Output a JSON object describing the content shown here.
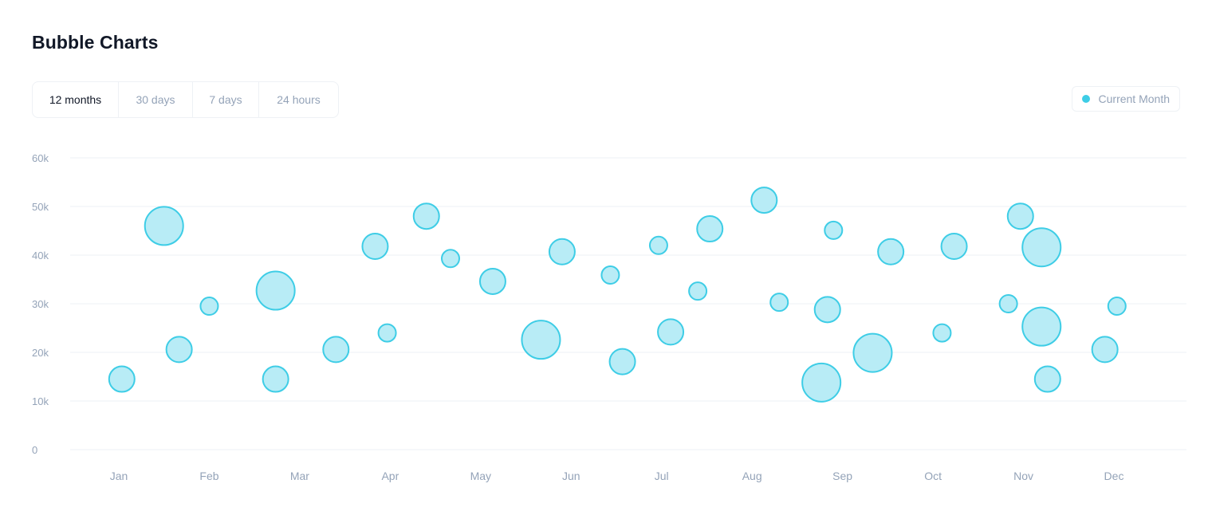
{
  "page": {
    "title": "Bubble Charts"
  },
  "tabs": [
    {
      "label": "12 months",
      "active": true
    },
    {
      "label": "30 days",
      "active": false
    },
    {
      "label": "7 days",
      "active": false
    },
    {
      "label": "24 hours",
      "active": false
    }
  ],
  "legend": {
    "label": "Current Month",
    "color": "#3ecde6"
  },
  "chart_data": {
    "type": "scatter",
    "variant": "bubble",
    "title": "",
    "xlabel": "",
    "ylabel": "",
    "x_ticks": [
      "Jan",
      "Feb",
      "Mar",
      "Apr",
      "May",
      "Jun",
      "Jul",
      "Aug",
      "Sep",
      "Oct",
      "Nov",
      "Dec"
    ],
    "y_ticks": [
      "0",
      "10k",
      "20k",
      "30k",
      "40k",
      "50k",
      "60k"
    ],
    "ylim": [
      0,
      60000
    ],
    "xlim": [
      "Jan",
      "Dec"
    ],
    "grid": true,
    "legend_position": "top-right",
    "bubble_fill": "#b8ecf6",
    "bubble_stroke": "#3ecde6",
    "series": [
      {
        "name": "Current Month",
        "points": [
          {
            "x": "Jan 2",
            "y": 14500,
            "r": 16
          },
          {
            "x": "Jan 16",
            "y": 46000,
            "r": 24
          },
          {
            "x": "Jan 21",
            "y": 20600,
            "r": 16
          },
          {
            "x": "Feb 1",
            "y": 29500,
            "r": 11
          },
          {
            "x": "Feb 23",
            "y": 32700,
            "r": 24
          },
          {
            "x": "Feb 23",
            "y": 14500,
            "r": 16
          },
          {
            "x": "Mar 13",
            "y": 20600,
            "r": 16
          },
          {
            "x": "Mar 26",
            "y": 41800,
            "r": 16
          },
          {
            "x": "Mar 30",
            "y": 24000,
            "r": 11
          },
          {
            "x": "Apr 13",
            "y": 48000,
            "r": 16
          },
          {
            "x": "Apr 21",
            "y": 39300,
            "r": 11
          },
          {
            "x": "May 5",
            "y": 34600,
            "r": 16
          },
          {
            "x": "May 21",
            "y": 22600,
            "r": 24
          },
          {
            "x": "May 28",
            "y": 40700,
            "r": 16
          },
          {
            "x": "Jun 14",
            "y": 35900,
            "r": 11
          },
          {
            "x": "Jun 18",
            "y": 18100,
            "r": 16
          },
          {
            "x": "Jun 30",
            "y": 42000,
            "r": 11
          },
          {
            "x": "Jul 4",
            "y": 24200,
            "r": 16
          },
          {
            "x": "Jul 13",
            "y": 32600,
            "r": 11
          },
          {
            "x": "Jul 17",
            "y": 45400,
            "r": 16
          },
          {
            "x": "Aug 5",
            "y": 51300,
            "r": 16
          },
          {
            "x": "Aug 10",
            "y": 30300,
            "r": 11
          },
          {
            "x": "Aug 24",
            "y": 13800,
            "r": 24
          },
          {
            "x": "Aug 26",
            "y": 28800,
            "r": 16
          },
          {
            "x": "Aug 28",
            "y": 45100,
            "r": 11
          },
          {
            "x": "Sep 11",
            "y": 19900,
            "r": 24
          },
          {
            "x": "Sep 17",
            "y": 40700,
            "r": 16
          },
          {
            "x": "Oct 4",
            "y": 24000,
            "r": 11
          },
          {
            "x": "Oct 8",
            "y": 41800,
            "r": 16
          },
          {
            "x": "Oct 26",
            "y": 30000,
            "r": 11
          },
          {
            "x": "Oct 30",
            "y": 48000,
            "r": 16
          },
          {
            "x": "Nov 7",
            "y": 41600,
            "r": 24
          },
          {
            "x": "Nov 7",
            "y": 25300,
            "r": 24
          },
          {
            "x": "Nov 9",
            "y": 14500,
            "r": 16
          },
          {
            "x": "Nov 28",
            "y": 20600,
            "r": 16
          },
          {
            "x": "Dec 2",
            "y": 29500,
            "r": 11
          }
        ]
      }
    ]
  }
}
